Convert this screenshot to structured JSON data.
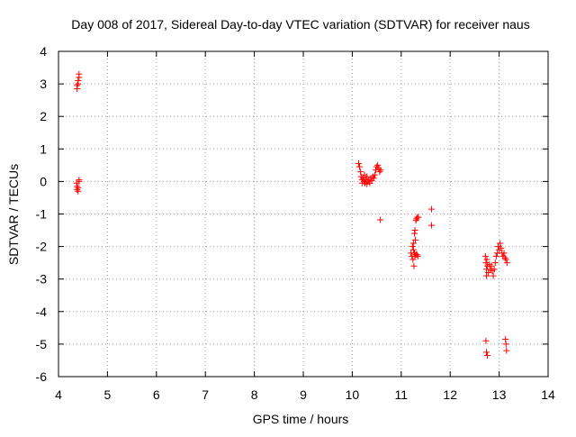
{
  "chart_data": {
    "type": "scatter",
    "title": "Day 008 of 2017, Sidereal Day-to-day VTEC variation (SDTVAR) for receiver naus",
    "xlabel": "GPS time / hours",
    "ylabel": "SDTVAR / TECUs",
    "xlim": [
      4,
      14
    ],
    "ylim": [
      -6,
      4
    ],
    "xticks": [
      4,
      5,
      6,
      7,
      8,
      9,
      10,
      11,
      12,
      13,
      14
    ],
    "yticks": [
      -6,
      -5,
      -4,
      -3,
      -2,
      -1,
      0,
      1,
      2,
      3,
      4
    ],
    "grid": true,
    "marker": "+",
    "color": "#ff0000",
    "series": [
      {
        "points": [
          [
            4.38,
            2.85
          ],
          [
            4.38,
            2.95
          ],
          [
            4.4,
            3.0
          ],
          [
            4.4,
            3.1
          ],
          [
            4.42,
            3.2
          ],
          [
            4.42,
            3.3
          ],
          [
            4.37,
            -0.05
          ],
          [
            4.38,
            -0.15
          ],
          [
            4.38,
            -0.25
          ],
          [
            4.4,
            -0.3
          ],
          [
            4.42,
            0.0
          ],
          [
            4.42,
            0.05
          ],
          [
            4.4,
            -0.2
          ],
          [
            10.13,
            0.55
          ],
          [
            10.15,
            0.45
          ],
          [
            10.17,
            0.3
          ],
          [
            10.18,
            0.15
          ],
          [
            10.2,
            0.05
          ],
          [
            10.2,
            -0.05
          ],
          [
            10.22,
            0.1
          ],
          [
            10.24,
            0.0
          ],
          [
            10.26,
            -0.05
          ],
          [
            10.28,
            0.05
          ],
          [
            10.3,
            -0.08
          ],
          [
            10.32,
            0.0
          ],
          [
            10.34,
            0.05
          ],
          [
            10.36,
            -0.05
          ],
          [
            10.38,
            0.1
          ],
          [
            10.4,
            0.02
          ],
          [
            10.42,
            0.15
          ],
          [
            10.44,
            0.1
          ],
          [
            10.46,
            0.2
          ],
          [
            10.48,
            0.35
          ],
          [
            10.5,
            0.45
          ],
          [
            10.52,
            0.5
          ],
          [
            10.54,
            0.4
          ],
          [
            10.56,
            0.3
          ],
          [
            10.58,
            0.35
          ],
          [
            10.3,
            0.15
          ],
          [
            10.25,
            0.2
          ],
          [
            10.57,
            -1.18
          ],
          [
            11.2,
            -2.2
          ],
          [
            11.22,
            -2.3
          ],
          [
            11.23,
            -2.0
          ],
          [
            11.24,
            -2.4
          ],
          [
            11.25,
            -1.9
          ],
          [
            11.25,
            -2.1
          ],
          [
            11.26,
            -2.6
          ],
          [
            11.27,
            -1.6
          ],
          [
            11.27,
            -2.2
          ],
          [
            11.28,
            -1.5
          ],
          [
            11.28,
            -2.3
          ],
          [
            11.29,
            -1.8
          ],
          [
            11.3,
            -1.2
          ],
          [
            11.3,
            -2.25
          ],
          [
            11.31,
            -1.15
          ],
          [
            11.32,
            -2.25
          ],
          [
            11.33,
            -1.1
          ],
          [
            11.34,
            -2.3
          ],
          [
            11.35,
            -1.1
          ],
          [
            11.62,
            -0.85
          ],
          [
            11.62,
            -1.35
          ],
          [
            12.72,
            -2.3
          ],
          [
            12.73,
            -2.5
          ],
          [
            12.74,
            -2.7
          ],
          [
            12.74,
            -2.9
          ],
          [
            12.75,
            -2.4
          ],
          [
            12.76,
            -2.6
          ],
          [
            12.78,
            -2.8
          ],
          [
            12.8,
            -2.55
          ],
          [
            12.82,
            -2.7
          ],
          [
            12.84,
            -2.6
          ],
          [
            12.86,
            -2.75
          ],
          [
            12.88,
            -2.9
          ],
          [
            12.9,
            -2.7
          ],
          [
            12.92,
            -2.5
          ],
          [
            12.94,
            -2.3
          ],
          [
            12.96,
            -2.2
          ],
          [
            12.98,
            -2.0
          ],
          [
            13.0,
            -2.1
          ],
          [
            13.02,
            -1.9
          ],
          [
            13.04,
            -2.05
          ],
          [
            13.06,
            -2.2
          ],
          [
            13.08,
            -2.3
          ],
          [
            13.1,
            -2.2
          ],
          [
            13.12,
            -2.35
          ],
          [
            13.14,
            -2.4
          ],
          [
            13.16,
            -2.5
          ],
          [
            12.73,
            -4.9
          ],
          [
            12.74,
            -5.25
          ],
          [
            12.76,
            -5.35
          ],
          [
            13.13,
            -4.85
          ],
          [
            13.14,
            -5.0
          ],
          [
            13.15,
            -5.2
          ]
        ]
      }
    ]
  }
}
